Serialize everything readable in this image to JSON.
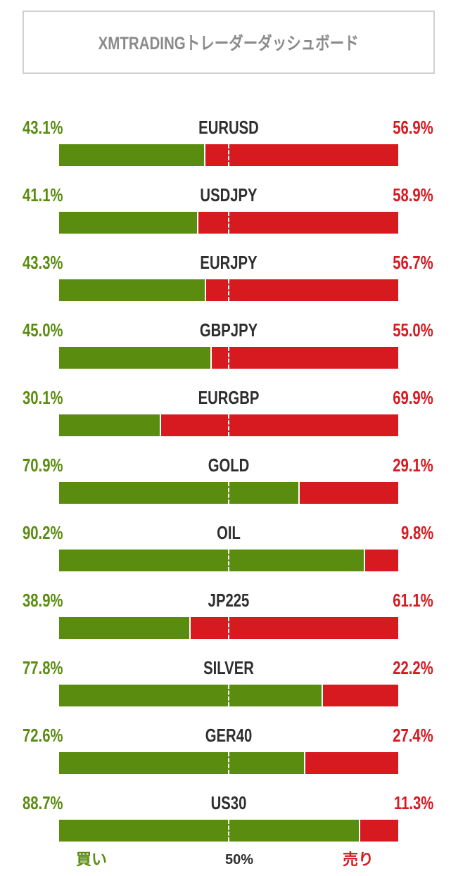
{
  "title": "XMTRADINGトレーダーダッシュボード",
  "colors": {
    "buy": "#5a8c10",
    "sell": "#d71920"
  },
  "chart_data": {
    "type": "bar",
    "orientation": "horizontal-stacked-100",
    "categories": [
      "EURUSD",
      "USDJPY",
      "EURJPY",
      "GBPJPY",
      "EURGBP",
      "GOLD",
      "OIL",
      "JP225",
      "SILVER",
      "GER40",
      "US30"
    ],
    "series": [
      {
        "name": "買い",
        "values": [
          43.1,
          41.1,
          43.3,
          45.0,
          30.1,
          70.9,
          90.2,
          38.9,
          77.8,
          72.6,
          88.7
        ],
        "labels": [
          "43.1%",
          "41.1%",
          "43.3%",
          "45.0%",
          "30.1%",
          "70.9%",
          "90.2%",
          "38.9%",
          "77.8%",
          "72.6%",
          "88.7%"
        ]
      },
      {
        "name": "売り",
        "values": [
          56.9,
          58.9,
          56.7,
          55.0,
          69.9,
          29.1,
          9.8,
          61.1,
          22.2,
          27.4,
          11.3
        ],
        "labels": [
          "56.9%",
          "58.9%",
          "56.7%",
          "55.0%",
          "69.9%",
          "29.1%",
          "9.8%",
          "61.1%",
          "22.2%",
          "27.4%",
          "11.3%"
        ]
      }
    ],
    "reference_line": "50%"
  },
  "legend": {
    "buy": "買い",
    "mid": "50%",
    "sell": "売り"
  }
}
